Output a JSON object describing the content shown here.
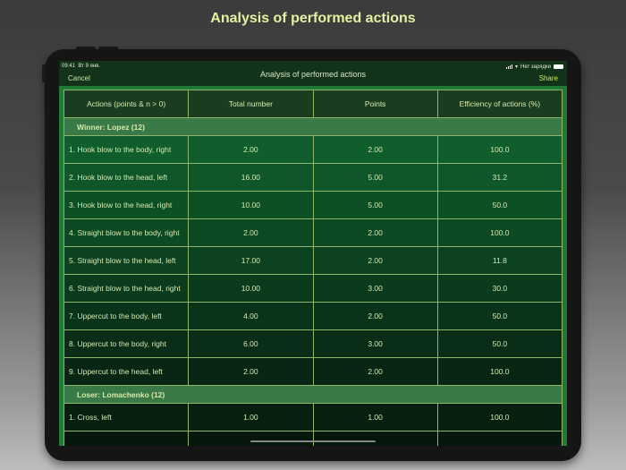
{
  "promo": {
    "title": "Analysis of performed actions"
  },
  "statusbar": {
    "time": "09:41",
    "date": "Вт 9 янв.",
    "battery_text": "Нет зарядки"
  },
  "navbar": {
    "cancel_label": "Cancel",
    "title": "Analysis of performed actions",
    "share_label": "Share"
  },
  "table": {
    "headers": [
      "Actions (points & n > 0)",
      "Total number",
      "Points",
      "Efficiency of actions (%)"
    ],
    "groups": [
      {
        "label": "Winner: Lopez (12)",
        "rows": [
          {
            "action": "1. Hook blow to the body, right",
            "total": "2.00",
            "points": "2.00",
            "efficiency": "100.0"
          },
          {
            "action": "2. Hook blow to the head, left",
            "total": "16.00",
            "points": "5.00",
            "efficiency": "31.2"
          },
          {
            "action": "3. Hook blow to the head, right",
            "total": "10.00",
            "points": "5.00",
            "efficiency": "50.0"
          },
          {
            "action": "4. Straight blow to the body, right",
            "total": "2.00",
            "points": "2.00",
            "efficiency": "100.0"
          },
          {
            "action": "5. Straight blow to the head, left",
            "total": "17.00",
            "points": "2.00",
            "efficiency": "11.8"
          },
          {
            "action": "6. Straight blow to the head, right",
            "total": "10.00",
            "points": "3.00",
            "efficiency": "30.0"
          },
          {
            "action": "7. Uppercut to the body, left",
            "total": "4.00",
            "points": "2.00",
            "efficiency": "50.0"
          },
          {
            "action": "8. Uppercut to the body, right",
            "total": "6.00",
            "points": "3.00",
            "efficiency": "50.0"
          },
          {
            "action": "9. Uppercut to the head, left",
            "total": "2.00",
            "points": "2.00",
            "efficiency": "100.0"
          }
        ]
      },
      {
        "label": "Loser: Lomachenko (12)",
        "rows": [
          {
            "action": "1. Cross, left",
            "total": "1.00",
            "points": "1.00",
            "efficiency": "100.0"
          }
        ]
      }
    ]
  }
}
